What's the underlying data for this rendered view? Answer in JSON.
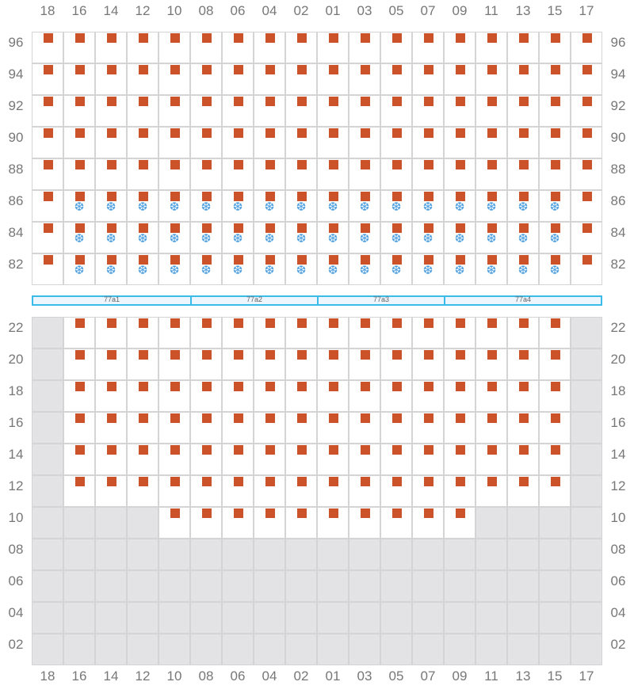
{
  "colors": {
    "seat": "#cc5229",
    "snowflake": "#4a9ee0",
    "unavailable": "#e3e3e5",
    "section_border": "#3bbbe8"
  },
  "legend_icons": {
    "seat": "square-seat-icon",
    "cold": "snowflake-icon"
  },
  "columns": [
    "18",
    "16",
    "14",
    "12",
    "10",
    "08",
    "06",
    "04",
    "02",
    "01",
    "03",
    "05",
    "07",
    "09",
    "11",
    "13",
    "15",
    "17"
  ],
  "top_block": [
    {
      "row": "96",
      "cells": "ssssssssssssssssss"
    },
    {
      "row": "94",
      "cells": "ssssssssssssssssss"
    },
    {
      "row": "92",
      "cells": "ssssssssssssssssss"
    },
    {
      "row": "90",
      "cells": "ssssssssssssssssss"
    },
    {
      "row": "88",
      "cells": "ssssssssssssssssss"
    },
    {
      "row": "86",
      "cells": "sffffffffffffffffs"
    },
    {
      "row": "84",
      "cells": "sffffffffffffffffs"
    },
    {
      "row": "82",
      "cells": "sffffffffffffffffs"
    }
  ],
  "sections": [
    {
      "label": "77a1",
      "from": "18",
      "to": "10"
    },
    {
      "label": "77a2",
      "from": "08",
      "to": "02"
    },
    {
      "label": "77a3",
      "from": "01",
      "to": "07"
    },
    {
      "label": "77a4",
      "from": "09",
      "to": "17"
    }
  ],
  "bottom_block": [
    {
      "row": "22",
      "cells": "xssssssssssssssssx"
    },
    {
      "row": "20",
      "cells": "xssssssssssssssssx"
    },
    {
      "row": "18",
      "cells": "xssssssssssssssssx"
    },
    {
      "row": "16",
      "cells": "xssssssssssssssssx"
    },
    {
      "row": "14",
      "cells": "xssssssssssssssssx"
    },
    {
      "row": "12",
      "cells": "xssssssssssssssssx"
    },
    {
      "row": "10",
      "cells": "xxxxssssssssssxxxx"
    },
    {
      "row": "08",
      "cells": "xxxxxxxxxxxxxxxxxx"
    },
    {
      "row": "06",
      "cells": "xxxxxxxxxxxxxxxxxx"
    },
    {
      "row": "04",
      "cells": "xxxxxxxxxxxxxxxxxx"
    },
    {
      "row": "02",
      "cells": "xxxxxxxxxxxxxxxxxx"
    }
  ],
  "snowflake_glyph": "❆"
}
